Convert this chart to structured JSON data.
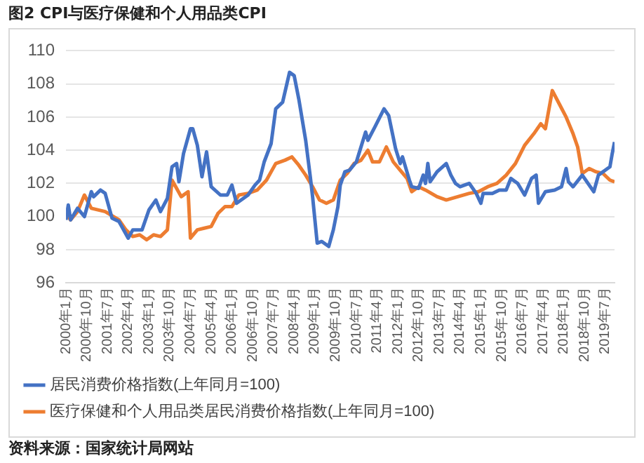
{
  "chart_data": {
    "type": "line",
    "title": "图2 CPI与医疗保健和个人用品类CPI",
    "xlim": [
      "2000-01",
      "2019-11"
    ],
    "xticks": [
      {
        "value": "2000-01",
        "label": "2000年1月"
      },
      {
        "value": "2000-10",
        "label": "2000年10月"
      },
      {
        "value": "2001-07",
        "label": "2001年7月"
      },
      {
        "value": "2002-04",
        "label": "2002年4月"
      },
      {
        "value": "2003-01",
        "label": "2003年1月"
      },
      {
        "value": "2003-10",
        "label": "2003年10月"
      },
      {
        "value": "2004-07",
        "label": "2004年7月"
      },
      {
        "value": "2005-04",
        "label": "2005年4月"
      },
      {
        "value": "2006-01",
        "label": "2006年1月"
      },
      {
        "value": "2006-10",
        "label": "2006年10月"
      },
      {
        "value": "2007-07",
        "label": "2007年7月"
      },
      {
        "value": "2008-04",
        "label": "2008年4月"
      },
      {
        "value": "2009-01",
        "label": "2009年1月"
      },
      {
        "value": "2009-10",
        "label": "2009年10月"
      },
      {
        "value": "2010-07",
        "label": "2010年7月"
      },
      {
        "value": "2011-04",
        "label": "2011年4月"
      },
      {
        "value": "2012-01",
        "label": "2012年1月"
      },
      {
        "value": "2012-10",
        "label": "2012年10月"
      },
      {
        "value": "2013-07",
        "label": "2013年7月"
      },
      {
        "value": "2014-04",
        "label": "2014年4月"
      },
      {
        "value": "2015-01",
        "label": "2015年1月"
      },
      {
        "value": "2015-10",
        "label": "2015年10月"
      },
      {
        "value": "2016-07",
        "label": "2016年7月"
      },
      {
        "value": "2017-04",
        "label": "2017年4月"
      },
      {
        "value": "2018-01",
        "label": "2018年1月"
      },
      {
        "value": "2018-10",
        "label": "2018年10月"
      },
      {
        "value": "2019-07",
        "label": "2019年7月"
      }
    ],
    "ylim": [
      96,
      110
    ],
    "yticks": [
      96,
      98,
      100,
      102,
      104,
      106,
      108,
      110
    ],
    "grid": "y",
    "legend": "bottom",
    "marker": "none",
    "line_style": "solid",
    "series": [
      {
        "name": "居民消费价格指数(上年同月=100)",
        "color": "#4472c4",
        "x": [
          "2000-01",
          "2000-02",
          "2000-03",
          "2000-06",
          "2000-09",
          "2000-12",
          "2001-01",
          "2001-04",
          "2001-06",
          "2001-09",
          "2001-12",
          "2002-04",
          "2002-06",
          "2002-10",
          "2003-01",
          "2003-04",
          "2003-06",
          "2003-09",
          "2003-11",
          "2004-01",
          "2004-02",
          "2004-04",
          "2004-07",
          "2004-08",
          "2004-10",
          "2004-12",
          "2005-02",
          "2005-04",
          "2005-08",
          "2005-11",
          "2006-01",
          "2006-03",
          "2006-08",
          "2006-11",
          "2007-01",
          "2007-03",
          "2007-06",
          "2007-08",
          "2007-11",
          "2008-02",
          "2008-04",
          "2008-06",
          "2008-09",
          "2008-11",
          "2008-12",
          "2009-02",
          "2009-04",
          "2009-07",
          "2009-09",
          "2009-11",
          "2009-12",
          "2010-02",
          "2010-04",
          "2010-07",
          "2010-11",
          "2010-12",
          "2011-03",
          "2011-07",
          "2011-09",
          "2011-12",
          "2012-02",
          "2012-03",
          "2012-06",
          "2012-07",
          "2012-10",
          "2012-12",
          "2013-01",
          "2013-02",
          "2013-03",
          "2013-06",
          "2013-10",
          "2013-12",
          "2014-02",
          "2014-04",
          "2014-08",
          "2014-11",
          "2015-01",
          "2015-02",
          "2015-06",
          "2015-09",
          "2015-12",
          "2016-02",
          "2016-05",
          "2016-08",
          "2016-11",
          "2017-01",
          "2017-02",
          "2017-05",
          "2017-09",
          "2017-12",
          "2018-02",
          "2018-03",
          "2018-05",
          "2018-09",
          "2018-12",
          "2019-02",
          "2019-04",
          "2019-07",
          "2019-09",
          "2019-10",
          "2019-11"
        ],
        "values": [
          99.8,
          100.7,
          99.8,
          100.5,
          100,
          101.5,
          101.2,
          101.6,
          101.4,
          99.9,
          99.7,
          98.7,
          99.2,
          99.2,
          100.4,
          101,
          100.3,
          101.1,
          103,
          103.2,
          102.1,
          103.8,
          105.3,
          105.3,
          104.3,
          102.4,
          103.9,
          101.8,
          101.3,
          101.3,
          101.9,
          100.8,
          101.3,
          101.9,
          102.2,
          103.3,
          104.4,
          106.5,
          106.9,
          108.7,
          108.5,
          107.1,
          104.6,
          102.4,
          101.2,
          98.4,
          98.5,
          98.2,
          99.2,
          100.6,
          101.9,
          102.7,
          102.8,
          103.3,
          105.1,
          104.6,
          105.4,
          106.5,
          106.1,
          104.1,
          103.2,
          103.6,
          102.2,
          101.8,
          101.7,
          102.5,
          102,
          103.2,
          102.1,
          102.7,
          103.2,
          102.5,
          102,
          101.8,
          102,
          101.4,
          100.8,
          101.4,
          101.4,
          101.6,
          101.6,
          102.3,
          102,
          101.3,
          102.3,
          102.5,
          100.8,
          101.5,
          101.6,
          101.8,
          102.9,
          102.1,
          101.8,
          102.5,
          101.9,
          101.5,
          102.5,
          102.8,
          103,
          103.8,
          104.5
        ]
      },
      {
        "name": "医疗保健和个人用品类居民消费价格指数(上年同月=100)",
        "color": "#ed7d31",
        "x": [
          "2000-01",
          "2000-03",
          "2000-06",
          "2000-09",
          "2000-12",
          "2001-06",
          "2001-12",
          "2002-03",
          "2002-06",
          "2002-09",
          "2002-12",
          "2003-03",
          "2003-06",
          "2003-09",
          "2003-11",
          "2004-01",
          "2004-03",
          "2004-06",
          "2004-07",
          "2004-10",
          "2005-01",
          "2005-04",
          "2005-07",
          "2005-10",
          "2006-01",
          "2006-04",
          "2006-08",
          "2006-12",
          "2007-04",
          "2007-08",
          "2007-12",
          "2008-03",
          "2008-06",
          "2008-09",
          "2008-12",
          "2009-03",
          "2009-06",
          "2009-09",
          "2009-12",
          "2010-03",
          "2010-06",
          "2010-09",
          "2010-12",
          "2011-02",
          "2011-05",
          "2011-08",
          "2011-11",
          "2012-02",
          "2012-05",
          "2012-07",
          "2012-10",
          "2013-01",
          "2013-06",
          "2013-10",
          "2014-03",
          "2014-08",
          "2014-12",
          "2015-04",
          "2015-08",
          "2015-12",
          "2016-04",
          "2016-08",
          "2016-12",
          "2017-03",
          "2017-05",
          "2017-08",
          "2017-11",
          "2018-02",
          "2018-05",
          "2018-07",
          "2018-09",
          "2018-12",
          "2019-03",
          "2019-06",
          "2019-09",
          "2019-11"
        ],
        "values": [
          100.2,
          99.8,
          100.3,
          101.3,
          100.5,
          100.3,
          99.8,
          99.2,
          98.8,
          98.9,
          98.6,
          98.9,
          98.8,
          99.2,
          102.2,
          101.7,
          101.2,
          101.5,
          98.7,
          99.2,
          99.3,
          99.4,
          100.2,
          100.6,
          100.6,
          101.3,
          101.4,
          101.6,
          102.2,
          103.2,
          103.4,
          103.6,
          103.1,
          102.5,
          101.8,
          101,
          100.8,
          101,
          102.2,
          102.6,
          103.2,
          103.4,
          104,
          103.3,
          103.3,
          104.2,
          103.3,
          102.8,
          102.3,
          101.5,
          101.8,
          101.6,
          101.2,
          101,
          101.2,
          101.4,
          101.5,
          101.8,
          102,
          102.5,
          103.2,
          104.3,
          105,
          105.6,
          105.3,
          107.6,
          106.8,
          106,
          105,
          104.2,
          102.6,
          102.9,
          102.7,
          102.6,
          102.2,
          102.1
        ]
      }
    ],
    "annotations": [
      "资料来源：国家统计局网站"
    ]
  }
}
